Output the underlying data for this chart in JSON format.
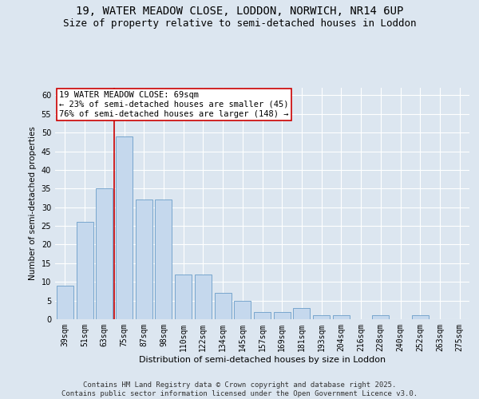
{
  "title_line1": "19, WATER MEADOW CLOSE, LODDON, NORWICH, NR14 6UP",
  "title_line2": "Size of property relative to semi-detached houses in Loddon",
  "xlabel": "Distribution of semi-detached houses by size in Loddon",
  "ylabel": "Number of semi-detached properties",
  "categories": [
    "39sqm",
    "51sqm",
    "63sqm",
    "75sqm",
    "87sqm",
    "98sqm",
    "110sqm",
    "122sqm",
    "134sqm",
    "145sqm",
    "157sqm",
    "169sqm",
    "181sqm",
    "193sqm",
    "204sqm",
    "216sqm",
    "228sqm",
    "240sqm",
    "252sqm",
    "263sqm",
    "275sqm"
  ],
  "values": [
    9,
    26,
    35,
    49,
    32,
    32,
    12,
    12,
    7,
    5,
    2,
    2,
    3,
    1,
    1,
    0,
    1,
    0,
    1,
    0,
    0
  ],
  "bar_color": "#c5d8ed",
  "bar_edge_color": "#6a9dc8",
  "vline_position": 2.5,
  "vline_color": "#cc0000",
  "annotation_text": "19 WATER MEADOW CLOSE: 69sqm\n← 23% of semi-detached houses are smaller (45)\n76% of semi-detached houses are larger (148) →",
  "annotation_box_color": "#ffffff",
  "annotation_box_edge": "#cc0000",
  "ylim": [
    0,
    62
  ],
  "yticks": [
    0,
    5,
    10,
    15,
    20,
    25,
    30,
    35,
    40,
    45,
    50,
    55,
    60
  ],
  "bg_color": "#dce6f0",
  "plot_bg_color": "#dce6f0",
  "footer_text": "Contains HM Land Registry data © Crown copyright and database right 2025.\nContains public sector information licensed under the Open Government Licence v3.0.",
  "grid_color": "#ffffff",
  "title_fontsize": 10,
  "subtitle_fontsize": 9,
  "annotation_fontsize": 7.5,
  "footer_fontsize": 6.5,
  "tick_fontsize": 7,
  "ylabel_fontsize": 7.5,
  "xlabel_fontsize": 8
}
